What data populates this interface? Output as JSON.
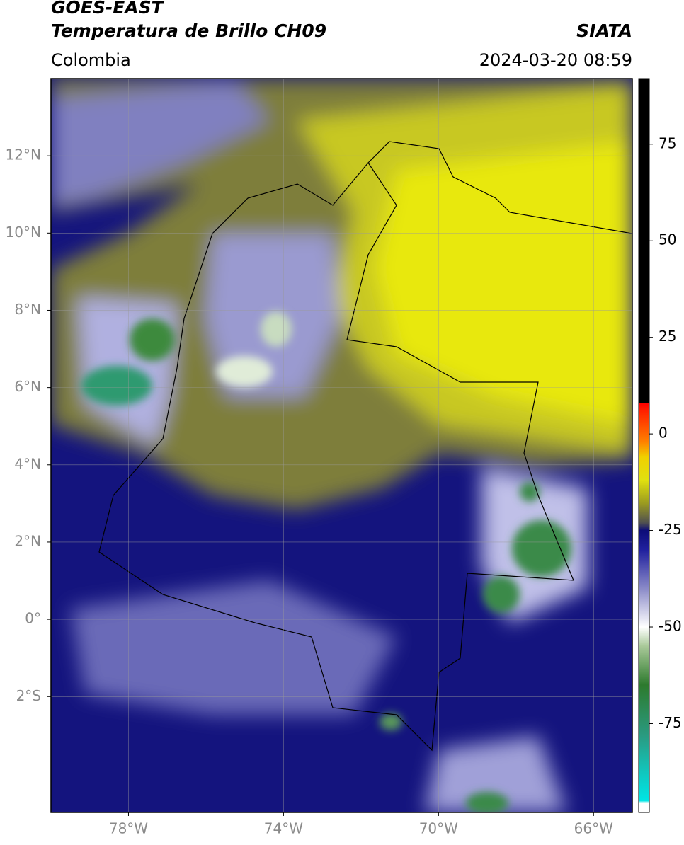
{
  "header": {
    "title": "GOES-EAST",
    "subtitle": "Temperatura de Brillo CH09",
    "source": "SIATA",
    "region": "Colombia",
    "datetime": "2024-03-20 08:59"
  },
  "map": {
    "xlim": [
      -80,
      -65
    ],
    "ylim": [
      -5,
      14
    ],
    "xticks": [
      {
        "value": -78,
        "label": "78°W"
      },
      {
        "value": -74,
        "label": "74°W"
      },
      {
        "value": -70,
        "label": "70°W"
      },
      {
        "value": -66,
        "label": "66°W"
      }
    ],
    "yticks": [
      {
        "value": 12,
        "label": "12°N"
      },
      {
        "value": 10,
        "label": "10°N"
      },
      {
        "value": 8,
        "label": "8°N"
      },
      {
        "value": 6,
        "label": "6°N"
      },
      {
        "value": 4,
        "label": "4°N"
      },
      {
        "value": 2,
        "label": "2°N"
      },
      {
        "value": 0,
        "label": "0°"
      },
      {
        "value": -2,
        "label": "2°S"
      }
    ],
    "grid": true
  },
  "colorbar": {
    "lim": [
      -98,
      92
    ],
    "ticks": [
      75,
      50,
      25,
      0,
      -25,
      -50,
      -75
    ],
    "stops": [
      [
        -98,
        "#ffffff"
      ],
      [
        -95.5,
        "#ffffff"
      ],
      [
        -95,
        "#00e5e5"
      ],
      [
        -88,
        "#10c8c0"
      ],
      [
        -78,
        "#2a9a80"
      ],
      [
        -65,
        "#2d7a2d"
      ],
      [
        -55,
        "#a8c898"
      ],
      [
        -50,
        "#ffffff"
      ],
      [
        -40,
        "#8a8ac8"
      ],
      [
        -30,
        "#20209e"
      ],
      [
        -25,
        "#0c0c78"
      ],
      [
        -23,
        "#505050"
      ],
      [
        -18,
        "#9a9a20"
      ],
      [
        -12,
        "#e0e010"
      ],
      [
        -6,
        "#f0d000"
      ],
      [
        -2,
        "#ff8000"
      ],
      [
        6,
        "#ff2000"
      ],
      [
        8,
        "#ff0000"
      ],
      [
        8.1,
        "#000000"
      ],
      [
        92,
        "#000000"
      ]
    ]
  }
}
